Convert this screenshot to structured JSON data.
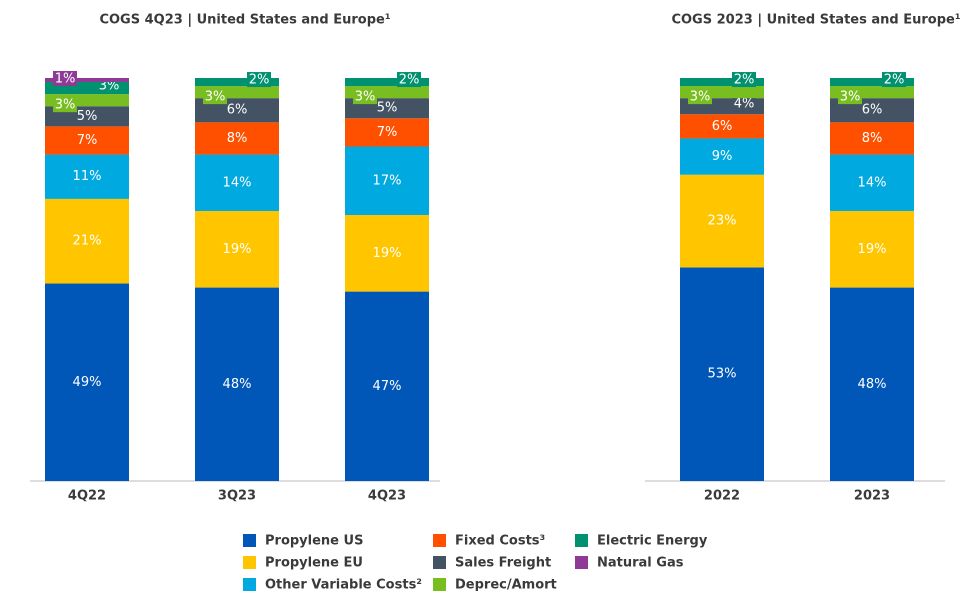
{
  "chart_data": [
    {
      "type": "stacked_bar",
      "title": "COGS 4Q23 | United States and Europe¹",
      "categories": [
        "4Q22",
        "3Q23",
        "4Q23"
      ],
      "series": [
        {
          "name": "Propylene US",
          "color": "#0057b8",
          "values": [
            49,
            48,
            47
          ],
          "value_labels": [
            "49%",
            "48%",
            "47%"
          ]
        },
        {
          "name": "Propylene EU",
          "color": "#ffc600",
          "values": [
            21,
            19,
            19
          ],
          "value_labels": [
            "21%",
            "19%",
            "19%"
          ]
        },
        {
          "name": "Other Variable Costs²",
          "color": "#00a9e0",
          "values": [
            11,
            14,
            17
          ],
          "value_labels": [
            "11%",
            "14%",
            "17%"
          ]
        },
        {
          "name": "Fixed Costs³",
          "color": "#ff5000",
          "values": [
            7,
            8,
            7
          ],
          "value_labels": [
            "7%",
            "8%",
            "7%"
          ]
        },
        {
          "name": "Sales Freight",
          "color": "#435363",
          "values": [
            5,
            6,
            5
          ],
          "value_labels": [
            "5%",
            "6%",
            "5%"
          ]
        },
        {
          "name": "Deprec/Amort",
          "color": "#78be20",
          "values": [
            3,
            3,
            3
          ],
          "value_labels": [
            "3%",
            "3%",
            "3%"
          ]
        },
        {
          "name": "Electric Energy",
          "color": "#009170",
          "values": [
            3,
            2,
            2
          ],
          "value_labels": [
            "3%",
            "2%",
            "2%"
          ]
        },
        {
          "name": "Natural Gas",
          "color": "#8e3a96",
          "values": [
            1,
            null,
            null
          ],
          "value_labels": [
            "1%",
            null,
            null
          ]
        }
      ]
    },
    {
      "type": "stacked_bar",
      "title": "COGS 2023 | United States and Europe¹",
      "categories": [
        "2022",
        "2023"
      ],
      "series": [
        {
          "color": "#0057b8",
          "values": [
            53,
            48
          ],
          "value_labels": [
            "53%",
            "48%"
          ]
        },
        {
          "color": "#ffc600",
          "values": [
            23,
            19
          ],
          "value_labels": [
            "23%",
            "19%"
          ]
        },
        {
          "color": "#00a9e0",
          "values": [
            9,
            14
          ],
          "value_labels": [
            "9%",
            "14%"
          ]
        },
        {
          "color": "#ff5000",
          "values": [
            6,
            8
          ],
          "value_labels": [
            "6%",
            "8%"
          ]
        },
        {
          "color": "#435363",
          "values": [
            4,
            6
          ],
          "value_labels": [
            "4%",
            "6%"
          ]
        },
        {
          "color": "#78be20",
          "values": [
            3,
            3
          ],
          "value_labels": [
            "3%",
            "3%"
          ]
        },
        {
          "color": "#009170",
          "values": [
            2,
            2
          ],
          "value_labels": [
            "2%",
            "2%"
          ]
        },
        {
          "color": "#8e3a96",
          "values": [
            null,
            null
          ],
          "value_labels": [
            null,
            null
          ]
        }
      ]
    }
  ]
}
